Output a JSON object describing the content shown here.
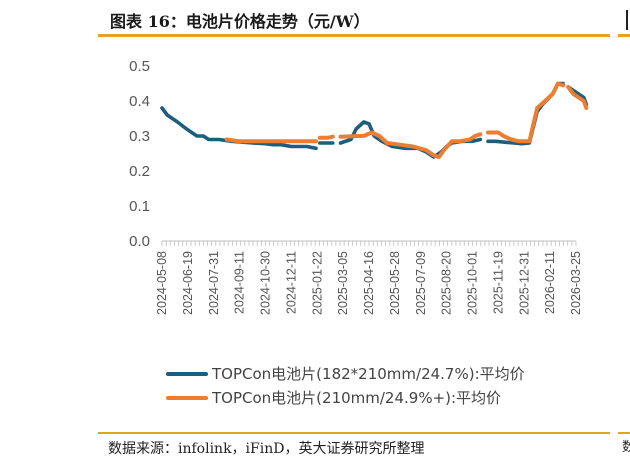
{
  "header": {
    "title": "图表 16：电池片价格走势（元/W）"
  },
  "source": {
    "text": "数据来源：infolink，iFinD，英大证券研究所整理"
  },
  "right_strip": {
    "fragment": "数"
  },
  "colors": {
    "accent": "#E8A21C",
    "series1": "#1B5E7E",
    "series2": "#ED7D31",
    "axis": "#BFBFBF"
  },
  "chart_data": {
    "type": "line",
    "ylim": [
      0,
      0.5
    ],
    "yticks": [
      "0.0",
      "0.1",
      "0.2",
      "0.3",
      "0.4",
      "0.5"
    ],
    "x_tick_labels": [
      "2024-05-08",
      "2024-06-19",
      "2024-07-31",
      "2024-09-11",
      "2024-10-30",
      "2024-12-11",
      "2025-01-22",
      "2025-03-05",
      "2025-04-16",
      "2025-05-28",
      "2025-07-09",
      "2025-08-20",
      "2025-10-01",
      "2025-11-19",
      "2025-12-31",
      "2026-02-11",
      "2026-03-25"
    ],
    "x_index_range": [
      0,
      16
    ],
    "series": [
      {
        "name": "TOPCon电池片(182*210mm/24.7%):平均价",
        "color": "#1B5E7E",
        "points": [
          [
            0.0,
            0.38
          ],
          [
            0.2,
            0.36
          ],
          [
            0.6,
            0.34
          ],
          [
            0.95,
            0.32
          ],
          [
            1.35,
            0.3
          ],
          [
            1.6,
            0.3
          ],
          [
            1.8,
            0.29
          ],
          [
            2.2,
            0.29
          ],
          [
            2.7,
            0.285
          ],
          [
            3.5,
            0.28
          ],
          [
            4.0,
            0.278
          ],
          [
            4.3,
            0.275
          ],
          [
            4.6,
            0.275
          ],
          [
            5.0,
            0.27
          ],
          [
            5.6,
            0.27
          ],
          [
            5.95,
            0.265
          ],
          [
            6.1,
            0.28
          ],
          [
            6.4,
            0.28
          ],
          [
            6.6,
            0.28
          ],
          [
            6.9,
            0.28
          ],
          [
            7.3,
            0.29
          ],
          [
            7.5,
            0.32
          ],
          [
            7.8,
            0.34
          ],
          [
            8.0,
            0.335
          ],
          [
            8.2,
            0.3
          ],
          [
            8.5,
            0.285
          ],
          [
            8.9,
            0.27
          ],
          [
            9.4,
            0.265
          ],
          [
            9.9,
            0.265
          ],
          [
            10.2,
            0.255
          ],
          [
            10.5,
            0.24
          ],
          [
            10.8,
            0.255
          ],
          [
            11.0,
            0.27
          ],
          [
            11.2,
            0.28
          ],
          [
            11.6,
            0.285
          ],
          [
            12.0,
            0.285
          ],
          [
            12.3,
            0.29
          ],
          [
            12.6,
            0.285
          ],
          [
            12.9,
            0.285
          ],
          [
            13.3,
            0.282
          ],
          [
            13.6,
            0.28
          ],
          [
            13.9,
            0.278
          ],
          [
            14.2,
            0.28
          ],
          [
            14.5,
            0.37
          ],
          [
            14.7,
            0.39
          ],
          [
            15.1,
            0.42
          ],
          [
            15.3,
            0.45
          ],
          [
            15.5,
            0.45
          ],
          [
            15.7,
            0.44
          ],
          [
            15.9,
            0.43
          ],
          [
            16.1,
            0.42
          ],
          [
            16.3,
            0.41
          ],
          [
            16.4,
            0.39
          ]
        ],
        "gaps": [
          [
            5.95,
            6.1
          ],
          [
            6.6,
            6.9
          ],
          [
            12.3,
            12.6
          ],
          [
            15.5,
            15.7
          ]
        ]
      },
      {
        "name": "TOPCon电池片(210mm/24.9%+):平均价",
        "color": "#ED7D31",
        "points": [
          [
            2.5,
            0.29
          ],
          [
            3.0,
            0.285
          ],
          [
            4.0,
            0.285
          ],
          [
            5.95,
            0.285
          ],
          [
            6.1,
            0.295
          ],
          [
            6.4,
            0.295
          ],
          [
            6.6,
            0.298
          ],
          [
            6.9,
            0.298
          ],
          [
            7.6,
            0.3
          ],
          [
            7.8,
            0.3
          ],
          [
            8.1,
            0.31
          ],
          [
            8.4,
            0.3
          ],
          [
            8.7,
            0.28
          ],
          [
            9.2,
            0.275
          ],
          [
            9.7,
            0.27
          ],
          [
            10.2,
            0.26
          ],
          [
            10.5,
            0.245
          ],
          [
            10.7,
            0.24
          ],
          [
            10.9,
            0.26
          ],
          [
            11.2,
            0.285
          ],
          [
            11.5,
            0.285
          ],
          [
            11.9,
            0.29
          ],
          [
            12.1,
            0.3
          ],
          [
            12.3,
            0.305
          ],
          [
            12.6,
            0.31
          ],
          [
            13.0,
            0.31
          ],
          [
            13.2,
            0.3
          ],
          [
            13.5,
            0.29
          ],
          [
            13.8,
            0.285
          ],
          [
            14.2,
            0.285
          ],
          [
            14.5,
            0.38
          ],
          [
            14.8,
            0.4
          ],
          [
            15.1,
            0.42
          ],
          [
            15.3,
            0.45
          ],
          [
            15.5,
            0.445
          ],
          [
            15.7,
            0.44
          ],
          [
            15.9,
            0.42
          ],
          [
            16.1,
            0.41
          ],
          [
            16.3,
            0.4
          ],
          [
            16.4,
            0.38
          ]
        ],
        "gaps": [
          [
            5.95,
            6.1
          ],
          [
            6.6,
            6.9
          ],
          [
            12.3,
            12.6
          ],
          [
            15.5,
            15.7
          ]
        ]
      }
    ],
    "legend": [
      "TOPCon电池片(182*210mm/24.7%):平均价",
      "TOPCon电池片(210mm/24.9%+):平均价"
    ],
    "legend_position": "bottom"
  }
}
